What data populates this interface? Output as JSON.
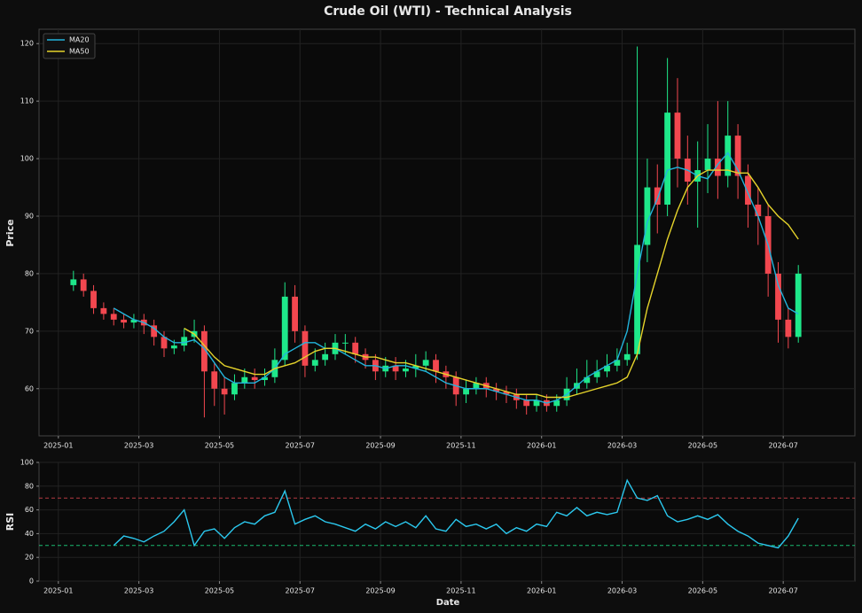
{
  "chart_data": [
    {
      "type": "candlestick",
      "title": "Crude Oil (WTI) - Technical Analysis",
      "ylabel": "Price",
      "x": [
        0.375,
        0.625,
        0.875,
        1.125,
        1.375,
        1.625,
        1.875,
        2.125,
        2.375,
        2.625,
        2.875,
        3.125,
        3.375,
        3.625,
        3.875,
        4.125,
        4.375,
        4.625,
        4.875,
        5.125,
        5.375,
        5.625,
        5.875,
        6.125,
        6.375,
        6.625,
        6.875,
        7.125,
        7.375,
        7.625,
        7.875,
        8.125,
        8.375,
        8.625,
        8.875,
        9.125,
        9.375,
        9.625,
        9.875,
        10.125,
        10.375,
        10.625,
        10.875,
        11.125,
        11.375,
        11.625,
        11.875,
        12.125,
        12.375,
        12.625,
        12.875,
        13.125,
        13.375,
        13.625,
        13.875,
        14.125,
        14.375,
        14.625,
        14.875,
        15.125,
        15.375,
        15.625,
        15.875,
        16.125,
        16.375,
        16.625,
        16.875,
        17.125,
        17.375,
        17.625,
        17.875,
        18.125,
        18.375
      ],
      "open": [
        78,
        79,
        77,
        74,
        73,
        72,
        71.5,
        72,
        71,
        69,
        67,
        67.5,
        69,
        70,
        63,
        60,
        59,
        61,
        62,
        61.5,
        62,
        65,
        76,
        70,
        64,
        65,
        66,
        68,
        68,
        66,
        65,
        63,
        64,
        63,
        63.5,
        64,
        65,
        63,
        62,
        59,
        60,
        61,
        60,
        59.5,
        59,
        58,
        57,
        58,
        57,
        58,
        60,
        61,
        62,
        63,
        64,
        65,
        66,
        85,
        95,
        92,
        108,
        100,
        96,
        98,
        100,
        97,
        104,
        97,
        92,
        90,
        80,
        72,
        69
      ],
      "high": [
        80.5,
        80,
        78,
        75,
        74,
        73,
        73,
        73,
        72,
        70,
        68.5,
        70.5,
        72,
        71,
        64.5,
        62,
        62.5,
        63.5,
        63.5,
        63.5,
        67,
        78.5,
        78,
        71,
        67,
        68,
        69.5,
        69.5,
        69,
        67,
        66,
        65.5,
        65.5,
        65,
        66,
        66.5,
        66,
        64,
        63,
        61.5,
        62,
        62,
        61,
        60.5,
        60,
        59,
        59,
        59,
        59,
        62,
        63.5,
        65,
        65,
        66,
        67,
        68,
        119.5,
        100,
        99,
        117.5,
        114,
        104,
        103,
        106,
        110,
        110,
        106,
        99,
        95,
        92,
        82,
        74,
        81.5
      ],
      "low": [
        77,
        76,
        73,
        72,
        71,
        70.5,
        70.5,
        69.5,
        67.5,
        65.5,
        66,
        66.5,
        68,
        55,
        57,
        55.5,
        58,
        60,
        60,
        60.5,
        61,
        64,
        68,
        62,
        63,
        64,
        65,
        66,
        64.5,
        63.5,
        61.5,
        62,
        61.5,
        62,
        62,
        63,
        61,
        60,
        57,
        57.5,
        59,
        58.5,
        58,
        57.5,
        56.5,
        55.5,
        56,
        56,
        56,
        57,
        59,
        60,
        61,
        62,
        63,
        64,
        65,
        82,
        87,
        90,
        95,
        92,
        88,
        94,
        93,
        95,
        93,
        88,
        85,
        76,
        68,
        67,
        68
      ],
      "close": [
        79,
        77,
        74,
        73,
        72,
        71.5,
        72,
        71,
        69,
        67,
        67.5,
        69,
        70,
        63,
        60,
        59,
        61,
        62,
        61.5,
        62,
        65,
        76,
        70,
        64,
        65,
        66,
        68,
        68,
        66,
        65,
        63,
        64,
        63,
        63.5,
        64,
        65,
        63,
        62,
        59,
        60,
        61,
        60,
        59.5,
        59,
        58,
        57,
        58,
        57,
        58,
        60,
        61,
        62,
        63,
        64,
        65,
        66,
        85,
        95,
        92,
        108,
        100,
        96,
        98,
        100,
        97,
        104,
        97,
        92,
        90,
        80,
        72,
        69,
        80
      ],
      "up_color": "#1ee88a",
      "down_color": "#f2474f",
      "series": [
        {
          "name": "MA20",
          "color": "#22b4dc",
          "values": [
            null,
            null,
            null,
            null,
            74,
            73,
            72,
            71.5,
            70.5,
            69,
            68,
            68,
            68.5,
            67,
            64.5,
            62,
            61,
            61,
            61,
            62,
            63.5,
            66,
            67,
            68,
            68,
            67,
            67,
            66,
            65,
            64,
            64,
            63.5,
            64,
            64,
            63.5,
            63,
            62,
            61,
            60.5,
            60,
            60,
            60,
            59.5,
            59,
            58.5,
            58,
            58,
            57.5,
            58,
            59,
            60.5,
            62,
            63,
            64,
            65,
            70,
            80,
            89,
            93,
            98,
            98.5,
            98,
            97,
            96.5,
            99,
            101,
            98,
            94,
            90,
            85,
            78,
            74,
            73
          ]
        },
        {
          "name": "MA50",
          "color": "#e6d42b",
          "values": [
            null,
            null,
            null,
            null,
            null,
            null,
            null,
            null,
            null,
            null,
            null,
            70.5,
            69.5,
            67.5,
            65.5,
            64,
            63.5,
            63,
            62.5,
            62.5,
            63.5,
            64,
            64.5,
            65.5,
            66.5,
            67,
            67,
            66.5,
            66,
            65.5,
            65.5,
            65,
            64.5,
            64.5,
            64,
            63.5,
            63,
            62.5,
            62,
            61.5,
            61,
            60.5,
            60,
            59.5,
            59,
            59,
            59,
            58.5,
            58.5,
            58.5,
            59,
            59.5,
            60,
            60.5,
            61,
            62,
            66,
            74,
            80,
            86,
            91,
            95,
            97,
            98,
            98,
            98,
            97.5,
            97.5,
            95,
            92,
            90,
            88.5,
            86
          ]
        }
      ],
      "xlim": [
        -0.48,
        19.78
      ],
      "ylim": [
        51.8,
        122.5
      ],
      "xticks": [
        {
          "value": 0,
          "label": "2025-01"
        },
        {
          "value": 2,
          "label": "2025-03"
        },
        {
          "value": 4,
          "label": "2025-05"
        },
        {
          "value": 6,
          "label": "2025-07"
        },
        {
          "value": 8,
          "label": "2025-09"
        },
        {
          "value": 10,
          "label": "2025-11"
        },
        {
          "value": 12,
          "label": "2026-01"
        },
        {
          "value": 14,
          "label": "2026-03"
        },
        {
          "value": 16,
          "label": "2026-05"
        },
        {
          "value": 18,
          "label": "2026-07"
        }
      ],
      "yticks": [
        60,
        70,
        80,
        90,
        100,
        110,
        120
      ],
      "grid": true,
      "legend": "upper left"
    },
    {
      "type": "line",
      "ylabel": "RSI",
      "xlabel": "Date",
      "x": [
        0.375,
        0.625,
        0.875,
        1.125,
        1.375,
        1.625,
        1.875,
        2.125,
        2.375,
        2.625,
        2.875,
        3.125,
        3.375,
        3.625,
        3.875,
        4.125,
        4.375,
        4.625,
        4.875,
        5.125,
        5.375,
        5.625,
        5.875,
        6.125,
        6.375,
        6.625,
        6.875,
        7.125,
        7.375,
        7.625,
        7.875,
        8.125,
        8.375,
        8.625,
        8.875,
        9.125,
        9.375,
        9.625,
        9.875,
        10.125,
        10.375,
        10.625,
        10.875,
        11.125,
        11.375,
        11.625,
        11.875,
        12.125,
        12.375,
        12.625,
        12.875,
        13.125,
        13.375,
        13.625,
        13.875,
        14.125,
        14.375,
        14.625,
        14.875,
        15.125,
        15.375,
        15.625,
        15.875,
        16.125,
        16.375,
        16.625,
        16.875,
        17.125,
        17.375,
        17.625,
        17.875,
        18.125,
        18.375
      ],
      "series": [
        {
          "color": "#2bc8ee",
          "values": [
            null,
            null,
            null,
            null,
            30,
            38,
            36,
            33,
            38,
            42,
            50,
            60,
            30,
            42,
            44,
            36,
            45,
            50,
            48,
            55,
            58,
            76,
            48,
            52,
            55,
            50,
            48,
            45,
            42,
            48,
            44,
            50,
            46,
            50,
            45,
            55,
            44,
            42,
            52,
            46,
            48,
            44,
            48,
            40,
            45,
            42,
            48,
            46,
            58,
            55,
            62,
            55,
            58,
            56,
            58,
            85,
            70,
            68,
            72,
            55,
            50,
            52,
            55,
            52,
            56,
            48,
            42,
            38,
            32,
            30,
            28,
            38,
            53
          ]
        }
      ],
      "reference_lines": [
        {
          "value": 70,
          "color": "#e0474f"
        },
        {
          "value": 30,
          "color": "#1ee88a"
        }
      ],
      "xlim": [
        -0.48,
        19.78
      ],
      "ylim": [
        0,
        100
      ],
      "xticks": [
        {
          "value": 0,
          "label": "2025-01"
        },
        {
          "value": 2,
          "label": "2025-03"
        },
        {
          "value": 4,
          "label": "2025-05"
        },
        {
          "value": 6,
          "label": "2025-07"
        },
        {
          "value": 8,
          "label": "2025-09"
        },
        {
          "value": 10,
          "label": "2025-11"
        },
        {
          "value": 12,
          "label": "2026-01"
        },
        {
          "value": 14,
          "label": "2026-03"
        },
        {
          "value": 16,
          "label": "2026-05"
        },
        {
          "value": 18,
          "label": "2026-07"
        }
      ],
      "yticks": [
        0,
        20,
        40,
        60,
        80,
        100
      ],
      "grid": true
    }
  ]
}
